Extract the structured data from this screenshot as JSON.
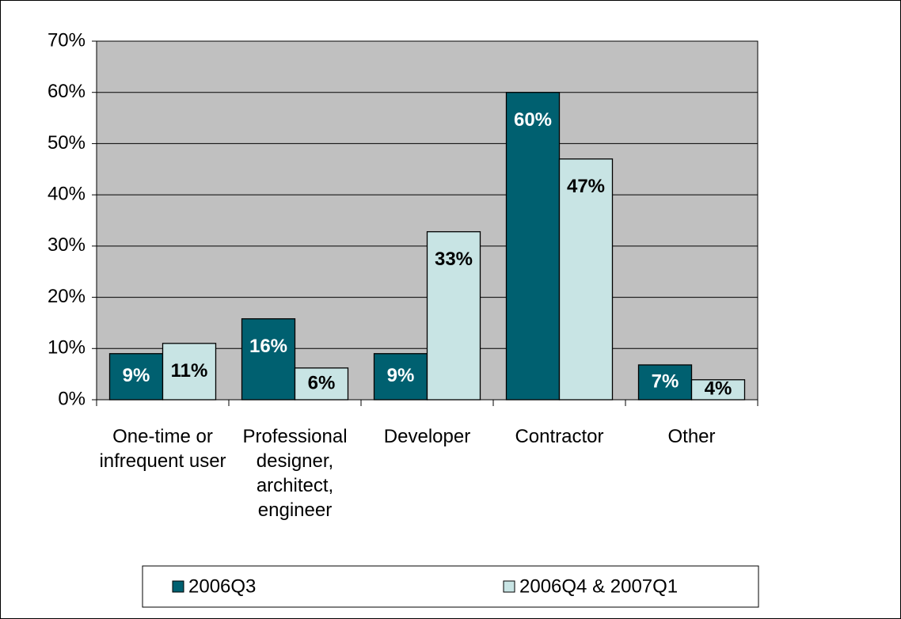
{
  "chart_data": {
    "type": "bar",
    "categories": [
      "One-time or infrequent user",
      "Professional designer, architect, engineer",
      "Developer",
      "Contractor",
      "Other"
    ],
    "series": [
      {
        "name": "2006Q3",
        "color": "#006070",
        "values": [
          9,
          15.8,
          9,
          60,
          6.8
        ],
        "value_labels": [
          "9%",
          "16%",
          "9%",
          "60%",
          "7%"
        ]
      },
      {
        "name": "2006Q4 & 2007Q1",
        "color": "#c8e4e4",
        "values": [
          11,
          6.2,
          32.8,
          47,
          3.9
        ],
        "value_labels": [
          "11%",
          "6%",
          "33%",
          "47%",
          "4%"
        ]
      }
    ],
    "ylim": [
      0,
      70
    ],
    "yticks": [
      {
        "value": 0,
        "label": "0%"
      },
      {
        "value": 10,
        "label": "10%"
      },
      {
        "value": 20,
        "label": "20%"
      },
      {
        "value": 30,
        "label": "30%"
      },
      {
        "value": 40,
        "label": "40%"
      },
      {
        "value": 50,
        "label": "50%"
      },
      {
        "value": 60,
        "label": "60%"
      },
      {
        "value": 70,
        "label": "70%"
      }
    ],
    "grid": true,
    "legend": "bottom"
  }
}
